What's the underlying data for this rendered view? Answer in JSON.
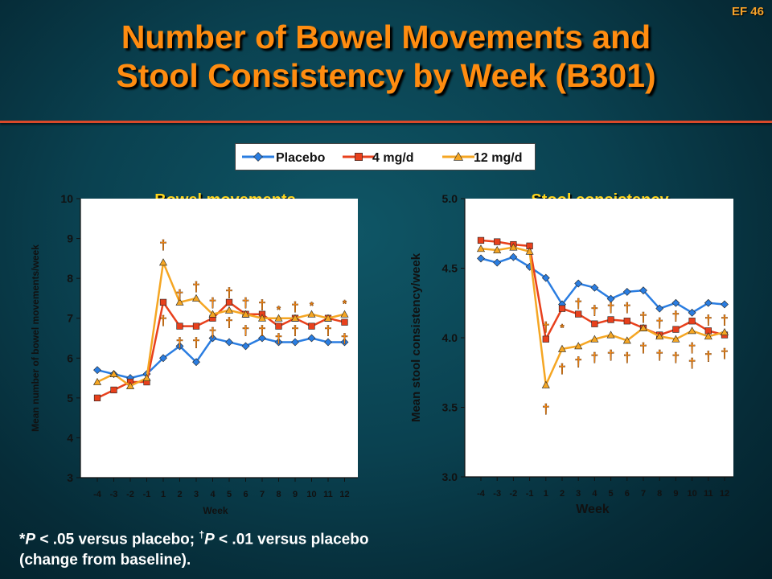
{
  "slide_id": "EF 46",
  "title_line1": "Number of Bowel Movements and",
  "title_line2": "Stool Consistency by Week (B301)",
  "colors": {
    "placebo": "#2a7de1",
    "mg4": "#e8401c",
    "mg12": "#f5a623",
    "marker": "#ff8c10",
    "panel_title": "#ffd51a"
  },
  "legend": [
    {
      "label": "Placebo",
      "color": "#2a7de1",
      "marker": "diamond"
    },
    {
      "label": "4 mg/d",
      "color": "#e8401c",
      "marker": "square"
    },
    {
      "label": "12 mg/d",
      "color": "#f5a623",
      "marker": "triangle"
    }
  ],
  "footnote": {
    "p1_sym": "*",
    "p1_mid": " < .05 versus placebo; ",
    "dag_sym": "†",
    "p2_tail": " < .01 versus placebo",
    "p_letter": "P",
    "line2": "(change from baseline)."
  },
  "chart_data": [
    {
      "type": "line",
      "title": "Bowel movements",
      "xlabel": "Week",
      "ylabel": "Mean number of bowel movements/week",
      "ylim": [
        3,
        10
      ],
      "yticks": [
        "3",
        "4",
        "5",
        "6",
        "7",
        "8",
        "9",
        "10"
      ],
      "x": [
        "-4",
        "-3",
        "-2",
        "-1",
        "1",
        "2",
        "3",
        "4",
        "5",
        "6",
        "7",
        "8",
        "9",
        "10",
        "11",
        "12"
      ],
      "series": [
        {
          "name": "Placebo",
          "values": [
            5.7,
            5.6,
            5.5,
            5.6,
            6.0,
            6.3,
            5.9,
            6.5,
            6.4,
            6.3,
            6.5,
            6.4,
            6.4,
            6.5,
            6.4,
            6.4
          ]
        },
        {
          "name": "4 mg/d",
          "values": [
            5.0,
            5.2,
            5.4,
            5.4,
            7.4,
            6.8,
            6.8,
            7.0,
            7.4,
            7.1,
            7.1,
            6.8,
            7.0,
            6.8,
            7.0,
            6.9
          ]
        },
        {
          "name": "12 mg/d",
          "values": [
            5.4,
            5.6,
            5.3,
            5.5,
            8.4,
            7.4,
            7.5,
            7.1,
            7.2,
            7.1,
            7.0,
            7.0,
            7.0,
            7.1,
            7.0,
            7.1
          ]
        }
      ],
      "significance": [
        {
          "x": "1",
          "y": 8.85,
          "symbol": "†"
        },
        {
          "x": "1",
          "y": 6.95,
          "symbol": "†"
        },
        {
          "x": "2",
          "y": 7.6,
          "symbol": "†"
        },
        {
          "x": "2",
          "y": 6.4,
          "symbol": "†"
        },
        {
          "x": "3",
          "y": 7.8,
          "symbol": "†"
        },
        {
          "x": "3",
          "y": 6.4,
          "symbol": "†"
        },
        {
          "x": "4",
          "y": 7.4,
          "symbol": "†"
        },
        {
          "x": "4",
          "y": 6.65,
          "symbol": "†"
        },
        {
          "x": "5",
          "y": 7.65,
          "symbol": "†"
        },
        {
          "x": "5",
          "y": 6.9,
          "symbol": "†"
        },
        {
          "x": "6",
          "y": 7.4,
          "symbol": "†"
        },
        {
          "x": "6",
          "y": 6.7,
          "symbol": "†"
        },
        {
          "x": "7",
          "y": 7.35,
          "symbol": "†"
        },
        {
          "x": "7",
          "y": 6.7,
          "symbol": "†"
        },
        {
          "x": "8",
          "y": 7.25,
          "symbol": "*"
        },
        {
          "x": "8",
          "y": 6.5,
          "symbol": "†"
        },
        {
          "x": "9",
          "y": 7.3,
          "symbol": "†"
        },
        {
          "x": "9",
          "y": 6.7,
          "symbol": "†"
        },
        {
          "x": "10",
          "y": 7.35,
          "symbol": "*"
        },
        {
          "x": "11",
          "y": 6.7,
          "symbol": "†"
        },
        {
          "x": "12",
          "y": 6.5,
          "symbol": "†"
        },
        {
          "x": "12",
          "y": 7.4,
          "symbol": "*"
        }
      ]
    },
    {
      "type": "line",
      "title": "Stool consistency",
      "xlabel": "Week",
      "ylabel": "Mean stool consistency/week",
      "ylim": [
        3.0,
        5.0
      ],
      "yticks": [
        "3.0",
        "3.5",
        "4.0",
        "4.5",
        "5.0"
      ],
      "x": [
        "-4",
        "-3",
        "-2",
        "-1",
        "1",
        "2",
        "3",
        "4",
        "5",
        "6",
        "7",
        "8",
        "9",
        "10",
        "11",
        "12"
      ],
      "series": [
        {
          "name": "Placebo",
          "values": [
            4.57,
            4.54,
            4.58,
            4.51,
            4.43,
            4.24,
            4.39,
            4.36,
            4.28,
            4.33,
            4.34,
            4.21,
            4.25,
            4.18,
            4.25,
            4.24
          ]
        },
        {
          "name": "4 mg/d",
          "values": [
            4.7,
            4.69,
            4.67,
            4.66,
            3.99,
            4.21,
            4.17,
            4.1,
            4.13,
            4.12,
            4.07,
            4.02,
            4.06,
            4.12,
            4.05,
            4.02
          ]
        },
        {
          "name": "12 mg/d",
          "values": [
            4.64,
            4.63,
            4.65,
            4.62,
            3.66,
            3.92,
            3.94,
            3.99,
            4.02,
            3.98,
            4.07,
            4.01,
            3.99,
            4.05,
            4.01,
            4.04
          ]
        }
      ],
      "significance": [
        {
          "x": "1",
          "y": 4.08,
          "symbol": "†"
        },
        {
          "x": "1",
          "y": 3.49,
          "symbol": "†"
        },
        {
          "x": "2",
          "y": 4.08,
          "symbol": "*"
        },
        {
          "x": "2",
          "y": 3.78,
          "symbol": "†"
        },
        {
          "x": "3",
          "y": 4.25,
          "symbol": "†"
        },
        {
          "x": "3",
          "y": 3.83,
          "symbol": "†"
        },
        {
          "x": "4",
          "y": 4.2,
          "symbol": "†"
        },
        {
          "x": "4",
          "y": 3.86,
          "symbol": "†"
        },
        {
          "x": "5",
          "y": 4.22,
          "symbol": "†"
        },
        {
          "x": "5",
          "y": 3.88,
          "symbol": "†"
        },
        {
          "x": "6",
          "y": 4.22,
          "symbol": "†"
        },
        {
          "x": "6",
          "y": 3.86,
          "symbol": "†"
        },
        {
          "x": "7",
          "y": 4.15,
          "symbol": "†"
        },
        {
          "x": "7",
          "y": 3.93,
          "symbol": "†"
        },
        {
          "x": "8",
          "y": 4.11,
          "symbol": "†"
        },
        {
          "x": "8",
          "y": 3.88,
          "symbol": "†"
        },
        {
          "x": "9",
          "y": 4.16,
          "symbol": "†"
        },
        {
          "x": "9",
          "y": 3.86,
          "symbol": "†"
        },
        {
          "x": "10",
          "y": 3.93,
          "symbol": "†"
        },
        {
          "x": "10",
          "y": 3.82,
          "symbol": "†"
        },
        {
          "x": "11",
          "y": 4.13,
          "symbol": "†"
        },
        {
          "x": "11",
          "y": 3.87,
          "symbol": "†"
        },
        {
          "x": "12",
          "y": 4.13,
          "symbol": "†"
        },
        {
          "x": "12",
          "y": 3.89,
          "symbol": "†"
        }
      ]
    }
  ]
}
